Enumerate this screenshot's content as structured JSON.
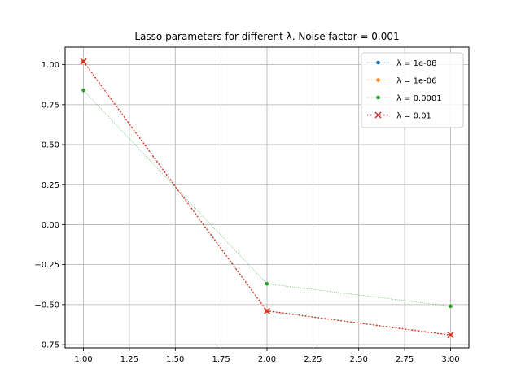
{
  "chart_data": {
    "type": "line",
    "title": "Lasso parameters for different λ. Noise factor = 0.001",
    "xlabel": "",
    "ylabel": "",
    "xlim": [
      0.9,
      3.1
    ],
    "ylim": [
      -0.77,
      1.11
    ],
    "x_ticks": [
      "1.00",
      "1.25",
      "1.50",
      "1.75",
      "2.00",
      "2.25",
      "2.50",
      "2.75",
      "3.00"
    ],
    "y_ticks": [
      "−0.75",
      "−0.50",
      "−0.25",
      "0.00",
      "0.25",
      "0.50",
      "0.75",
      "1.00"
    ],
    "grid": true,
    "legend_position": "top-right",
    "x": [
      1,
      2,
      3
    ],
    "series": [
      {
        "name": "λ = 1e-08",
        "values": [
          1.02,
          -0.54,
          -0.69
        ],
        "color": "#1f77b4",
        "linestyle": "dotted",
        "marker": "dot"
      },
      {
        "name": "λ = 1e-06",
        "values": [
          1.02,
          -0.54,
          -0.69
        ],
        "color": "#ff7f0e",
        "linestyle": "dotted",
        "marker": "dot"
      },
      {
        "name": "λ = 0.0001",
        "values": [
          0.84,
          -0.37,
          -0.51
        ],
        "color": "#2ca02c",
        "linestyle": "dotted",
        "marker": "dot"
      },
      {
        "name": "λ = 0.01",
        "values": [
          1.02,
          -0.54,
          -0.69
        ],
        "color": "#d62728",
        "linestyle": "dotted-thick",
        "marker": "x"
      }
    ]
  }
}
